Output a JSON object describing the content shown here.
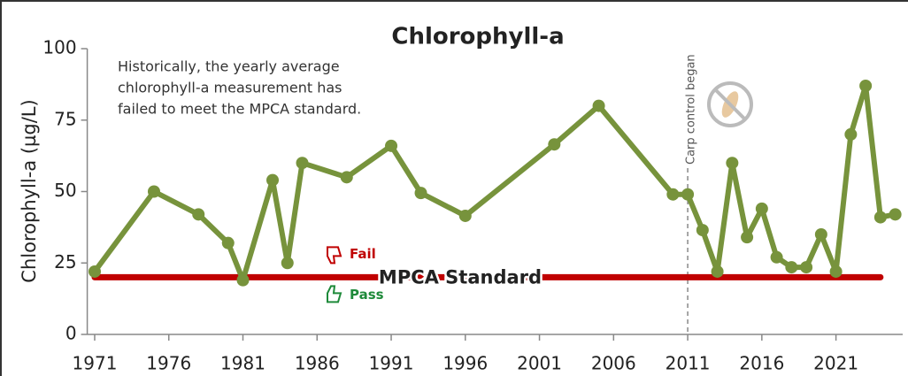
{
  "chart_data": {
    "type": "line",
    "title": "Chlorophyll-a",
    "y_label": "Chlorophyll-a  (µg/L)",
    "annotation": [
      "Historically, the yearly average",
      "chlorophyll-a measurement has",
      "failed to meet the MPCA standard."
    ],
    "event": {
      "label": "Carp control began",
      "x": 2011
    },
    "standard": {
      "label": "MPCA Standard",
      "value": 20,
      "x": [
        1971,
        2024
      ],
      "color": "#c00000",
      "above_label": "Fail",
      "below_label": "Pass"
    },
    "series": [
      {
        "name": "Chlorophyll-a",
        "color": "#77933c",
        "x": [
          1971,
          1975,
          1978,
          1980,
          1981,
          1983,
          1984,
          1985,
          1988,
          1991,
          1993,
          1996,
          2002,
          2005,
          2010,
          2011,
          2012,
          2013,
          2014,
          2015,
          2016,
          2017,
          2018,
          2019,
          2020,
          2021,
          2022,
          2023,
          2024,
          2025
        ],
        "values": [
          22,
          50,
          42,
          32,
          19,
          54,
          25,
          60,
          55,
          66,
          49.5,
          41.5,
          66.5,
          80,
          49,
          49,
          36.5,
          22,
          60,
          34,
          44,
          27,
          23.5,
          23.5,
          35,
          22,
          70,
          87,
          41,
          42
        ]
      }
    ],
    "xlim": [
      1970.5,
      2025.5
    ],
    "xticks": [
      1971,
      1976,
      1981,
      1986,
      1991,
      1996,
      2001,
      2006,
      2011,
      2016,
      2021
    ],
    "ylim": [
      0,
      100
    ],
    "yticks": [
      0,
      25,
      50,
      75,
      100
    ]
  }
}
